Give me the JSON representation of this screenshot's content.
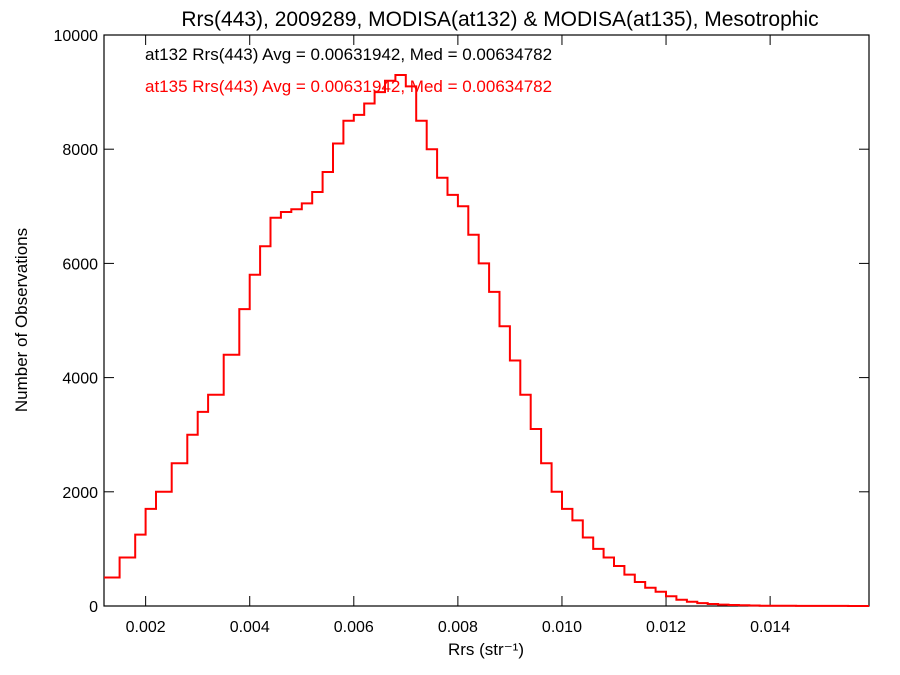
{
  "chart_data": {
    "type": "line",
    "title": "Rrs(443), 2009289, MODISA(at132) & MODISA(at135), Mesotrophic",
    "xlabel": "Rrs (str⁻¹)",
    "ylabel": "Number of Observations",
    "xlim": [
      0.0012,
      0.0159
    ],
    "ylim": [
      0,
      10000
    ],
    "x_ticks": [
      0.002,
      0.004,
      0.006,
      0.008,
      0.01,
      0.012,
      0.014
    ],
    "x_tick_labels": [
      "0.002",
      "0.004",
      "0.006",
      "0.008",
      "0.010",
      "0.012",
      "0.014"
    ],
    "y_ticks": [
      0,
      2000,
      4000,
      6000,
      8000,
      10000
    ],
    "y_tick_labels": [
      "0",
      "2000",
      "4000",
      "6000",
      "8000",
      "10000"
    ],
    "grid": false,
    "annotations": [
      {
        "text": "at132 Rrs(443) Avg = 0.00631942, Med = 0.00634782",
        "color": "#000000"
      },
      {
        "text": "at135 Rrs(443) Avg = 0.00631942, Med = 0.00634782",
        "color": "#ff0000"
      }
    ],
    "series": [
      {
        "color": "#ff0000",
        "style": "histogram-step",
        "x": [
          0.0012,
          0.0015,
          0.0018,
          0.002,
          0.0022,
          0.0025,
          0.0028,
          0.003,
          0.0032,
          0.0035,
          0.0038,
          0.004,
          0.0042,
          0.0044,
          0.0046,
          0.0048,
          0.005,
          0.0052,
          0.0054,
          0.0056,
          0.0058,
          0.006,
          0.0062,
          0.0064,
          0.0066,
          0.0068,
          0.007,
          0.0072,
          0.0074,
          0.0076,
          0.0078,
          0.008,
          0.0082,
          0.0084,
          0.0086,
          0.0088,
          0.009,
          0.0092,
          0.0094,
          0.0096,
          0.0098,
          0.01,
          0.0102,
          0.0104,
          0.0106,
          0.0108,
          0.011,
          0.0112,
          0.0114,
          0.0116,
          0.0118,
          0.012,
          0.0122,
          0.0124,
          0.0126,
          0.0128,
          0.013,
          0.0132,
          0.0134,
          0.0136,
          0.0138,
          0.014,
          0.0145,
          0.015,
          0.0155,
          0.0159
        ],
        "y": [
          500,
          850,
          1250,
          1700,
          2000,
          2500,
          3000,
          3400,
          3700,
          4400,
          5200,
          5800,
          6300,
          6800,
          6900,
          6950,
          7050,
          7250,
          7600,
          8100,
          8500,
          8600,
          8800,
          9000,
          9200,
          9300,
          9100,
          8500,
          8000,
          7500,
          7200,
          7000,
          6500,
          6000,
          5500,
          4900,
          4300,
          3700,
          3100,
          2500,
          2000,
          1700,
          1500,
          1200,
          1000,
          850,
          700,
          550,
          420,
          320,
          250,
          170,
          110,
          75,
          50,
          35,
          25,
          18,
          12,
          8,
          5,
          4,
          2,
          1,
          0,
          0
        ]
      }
    ]
  }
}
